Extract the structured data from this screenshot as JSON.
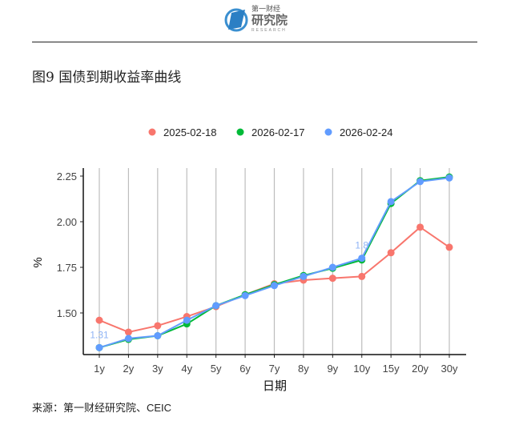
{
  "logo": {
    "line1": "第一财经",
    "line2": "研究院",
    "line3": "RESEARCH"
  },
  "title": "图9 国债到期收益率曲线",
  "source": "来源：第一财经研究院、CEIC",
  "chart_data": {
    "type": "line",
    "title": "",
    "xlabel": "日期",
    "ylabel": "%",
    "categories": [
      "1y",
      "2y",
      "3y",
      "4y",
      "5y",
      "6y",
      "7y",
      "8y",
      "9y",
      "10y",
      "15y",
      "20y",
      "30y"
    ],
    "ylim": [
      1.27,
      2.27
    ],
    "yticks": [
      1.5,
      1.75,
      2.0,
      2.25
    ],
    "ytick_labels": [
      "1.50",
      "1.75",
      "2.00",
      "2.25"
    ],
    "grid": "vertical",
    "legend_position": "top",
    "series": [
      {
        "name": "2025-02-18",
        "color": "#F8766D",
        "values": [
          1.46,
          1.395,
          1.43,
          1.48,
          1.535,
          1.6,
          1.66,
          1.68,
          1.69,
          1.7,
          1.83,
          1.97,
          1.86
        ]
      },
      {
        "name": "2026-02-17",
        "color": "#00BA38",
        "values": [
          1.31,
          1.355,
          1.375,
          1.44,
          1.54,
          1.6,
          1.655,
          1.705,
          1.745,
          1.79,
          2.1,
          2.225,
          2.245
        ]
      },
      {
        "name": "2026-02-24",
        "color": "#619CFF",
        "values": [
          1.31,
          1.36,
          1.375,
          1.46,
          1.54,
          1.595,
          1.65,
          1.7,
          1.75,
          1.8,
          2.11,
          2.22,
          2.24
        ]
      }
    ],
    "annotations": [
      {
        "series": "2026-02-24",
        "category": "1y",
        "text": "1.31"
      },
      {
        "series": "2026-02-24",
        "category": "10y",
        "text": "1.8"
      }
    ]
  }
}
